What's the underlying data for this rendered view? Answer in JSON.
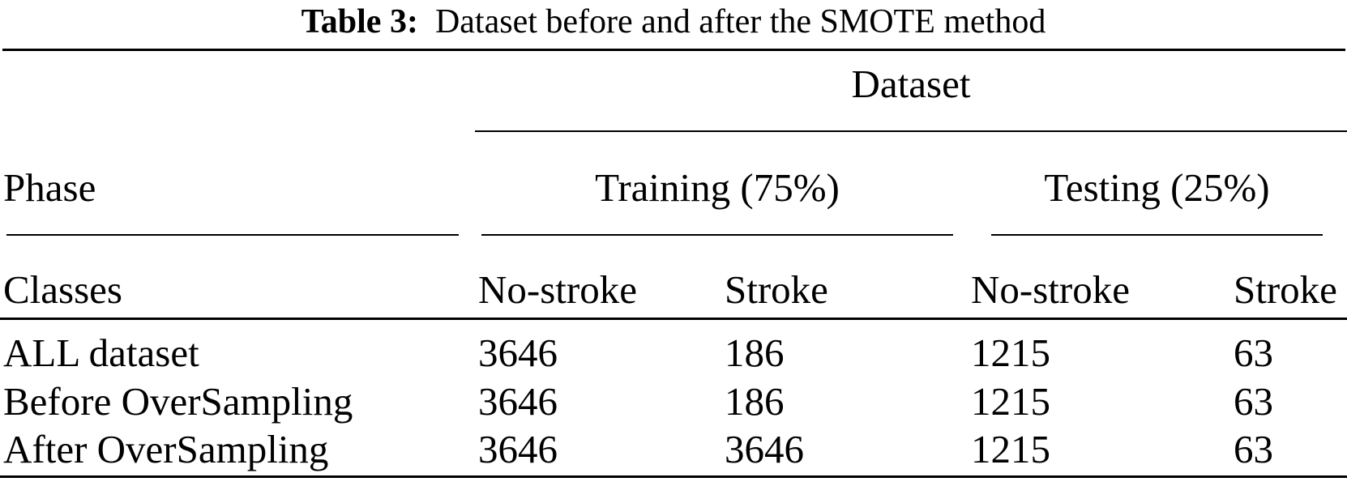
{
  "caption": {
    "label": "Table 3:",
    "text": "Dataset before and after the SMOTE method"
  },
  "table": {
    "group_header": "Dataset",
    "phase_label": "Phase",
    "phase_columns": [
      {
        "label": "Training (75%)"
      },
      {
        "label": "Testing (25%)"
      }
    ],
    "classes_label": "Classes",
    "columns": [
      "No-stroke",
      "Stroke",
      "No-stroke",
      "Stroke"
    ],
    "rows": [
      {
        "label": "ALL dataset",
        "values": [
          "3646",
          "186",
          "1215",
          "63"
        ]
      },
      {
        "label": "Before OverSampling",
        "values": [
          "3646",
          "186",
          "1215",
          "63"
        ]
      },
      {
        "label": "After OverSampling",
        "values": [
          "3646",
          "3646",
          "1215",
          "63"
        ]
      }
    ]
  },
  "colors": {
    "background": "#ffffff",
    "text": "#000000",
    "rule": "#000000"
  }
}
